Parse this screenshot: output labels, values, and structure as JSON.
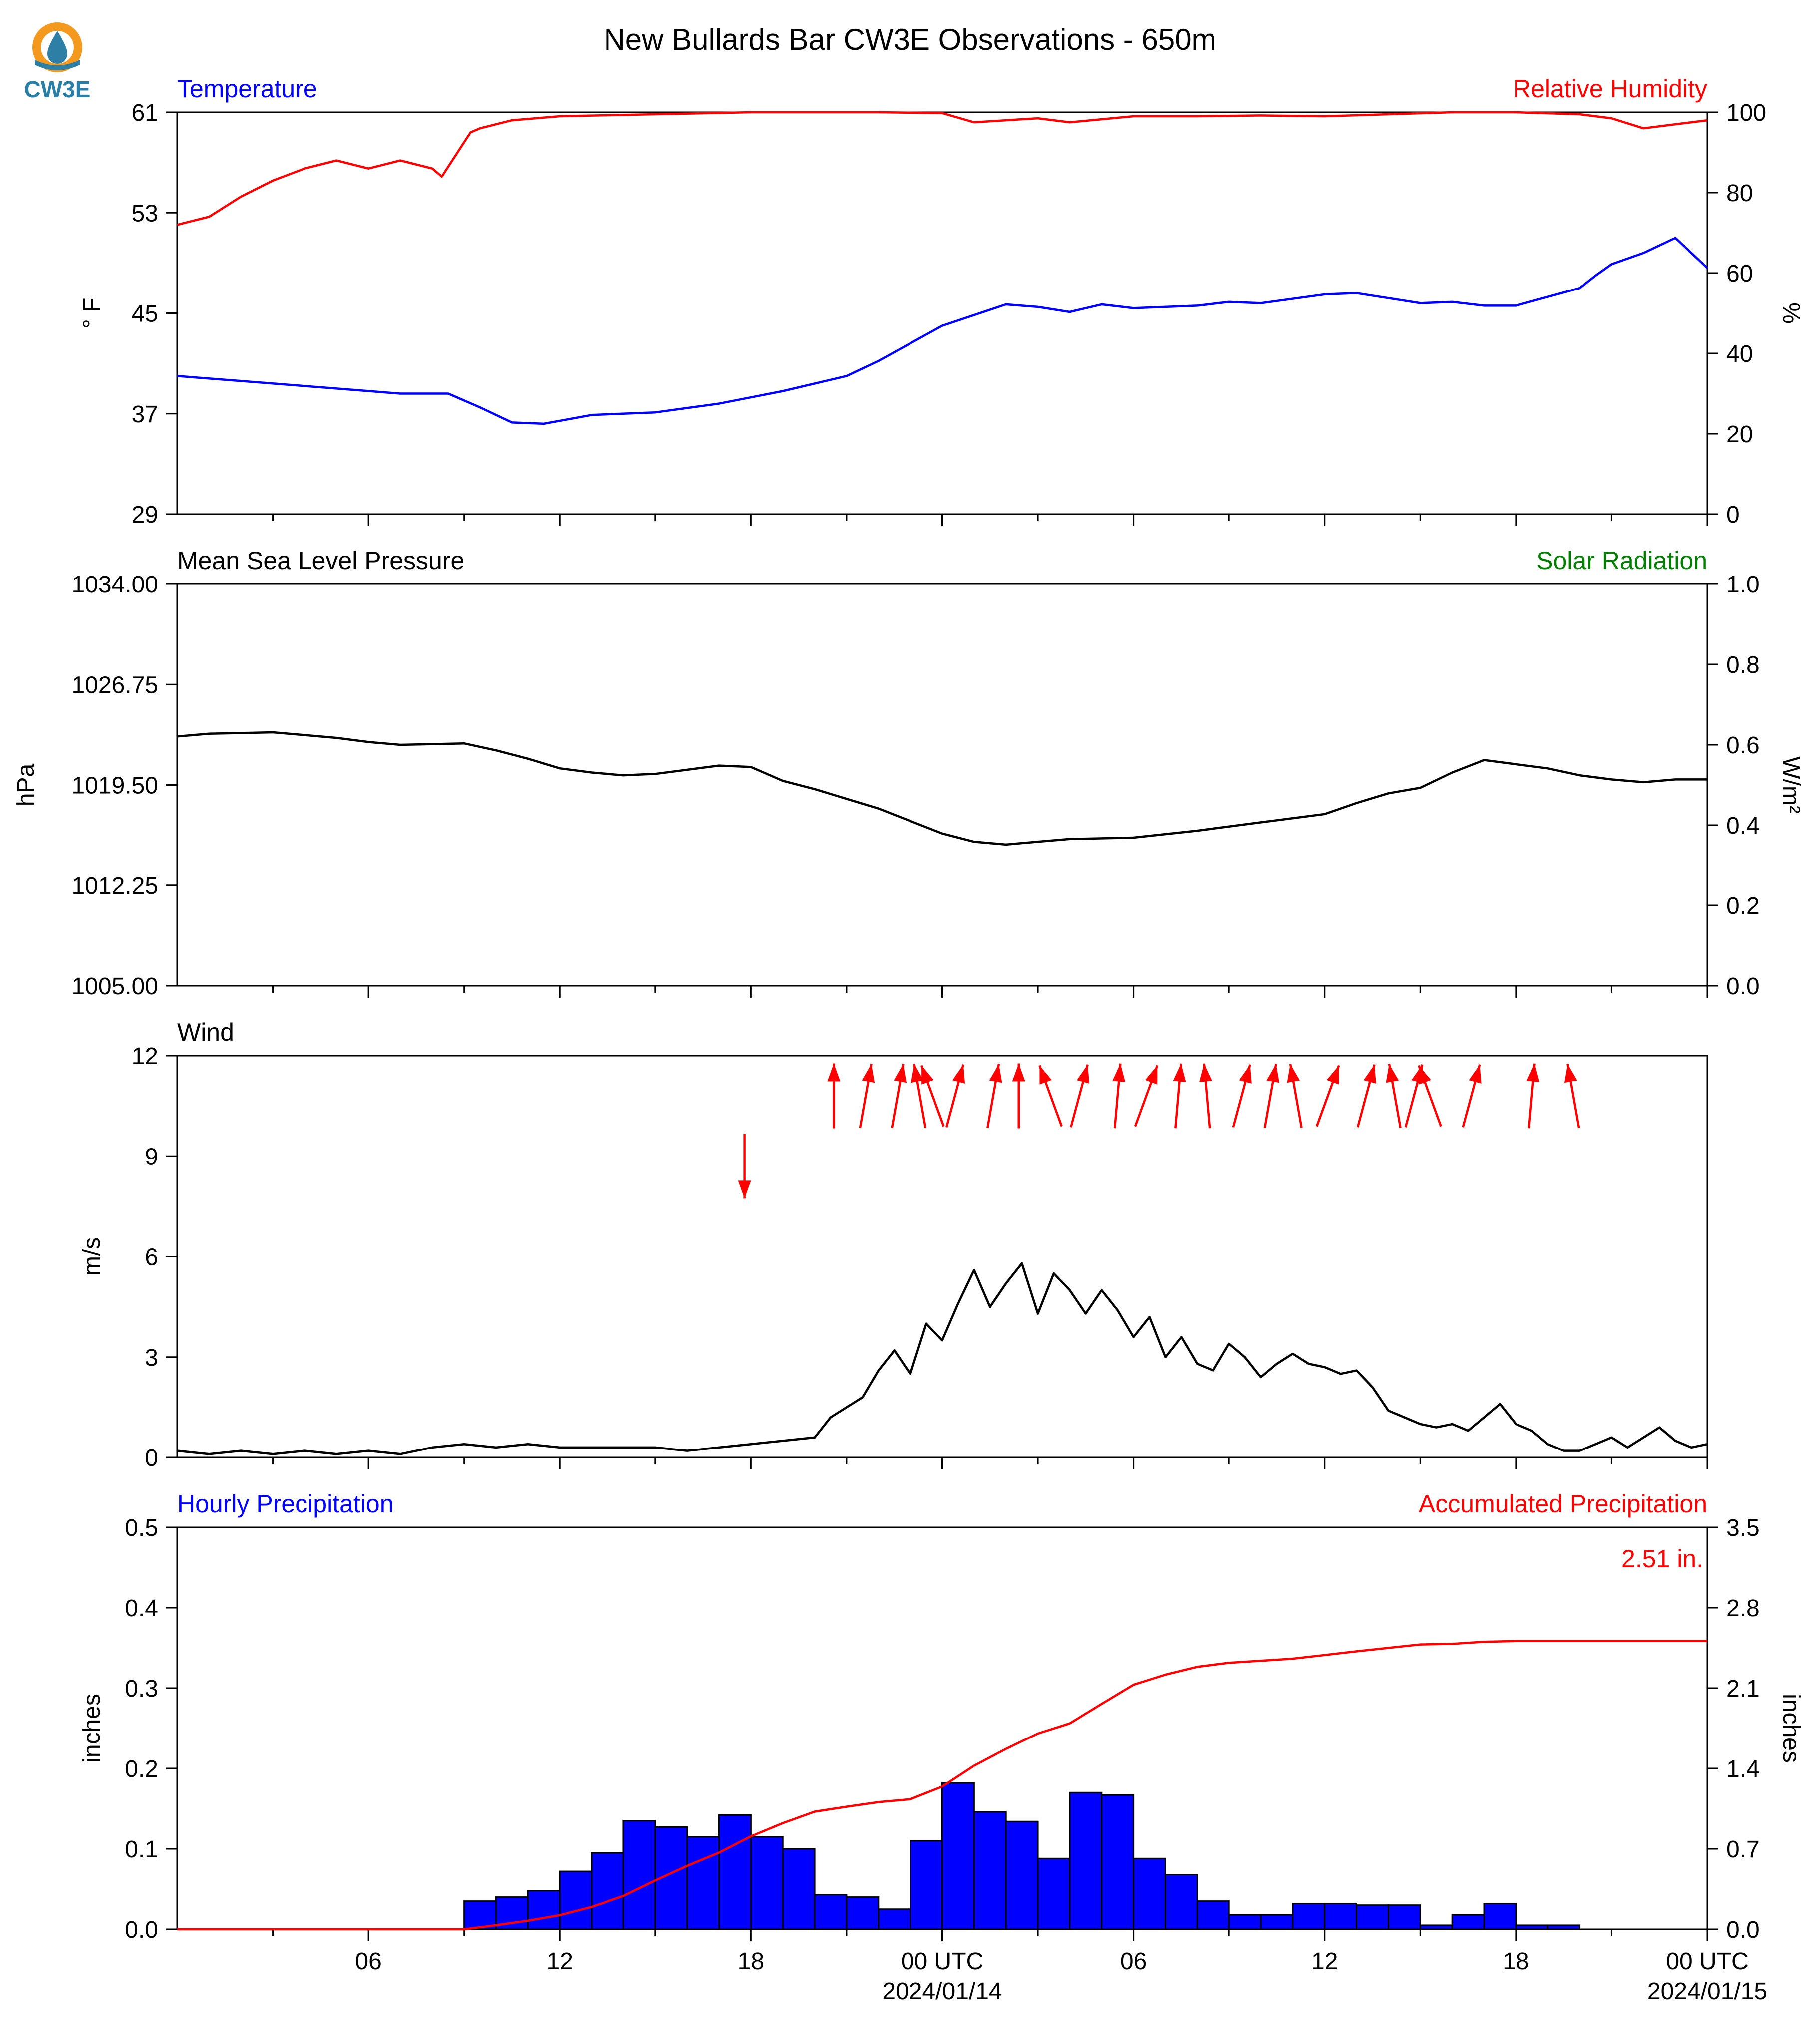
{
  "title": "New Bullards Bar CW3E Observations - 650m",
  "logo": {
    "text": "CW3E",
    "icon": "water-drop-logo-icon",
    "colors": {
      "orange": "#F39A1E",
      "blue": "#2E7FA6",
      "text": "#2A7FA8"
    }
  },
  "colors": {
    "blue": "#0000FF",
    "red": "#FF0000",
    "green": "#008000",
    "black": "#000000"
  },
  "x_axis": {
    "tick_labels": [
      "06",
      "12",
      "18",
      "00 UTC",
      "06",
      "12",
      "18",
      "00 UTC"
    ],
    "date_labels": [
      "2024/01/14",
      "2024/01/15"
    ]
  },
  "chart_data": [
    {
      "type": "line",
      "left_label": "Temperature",
      "right_label": "Relative Humidity",
      "ylabel_left": "° F",
      "ylabel_right": "%",
      "ylim_left": [
        29,
        61
      ],
      "yticks_left": [
        "29",
        "37",
        "45",
        "53",
        "61"
      ],
      "ylim_right": [
        0,
        100
      ],
      "yticks_right": [
        "0",
        "20",
        "40",
        "60",
        "80",
        "100"
      ],
      "series": [
        {
          "name": "Temperature",
          "axis": "left",
          "color": "#0000FF",
          "x": [
            0,
            2,
            5,
            7,
            8.5,
            9.5,
            10.5,
            11.5,
            13,
            15,
            17,
            19,
            21,
            22,
            24,
            26,
            27,
            28,
            29,
            30,
            32,
            33,
            34,
            36,
            37,
            38,
            39,
            40,
            41,
            42,
            43,
            44,
            44.5,
            45,
            46,
            47,
            48
          ],
          "y": [
            40,
            39.6,
            39,
            38.6,
            38.6,
            37.5,
            36.3,
            36.2,
            36.9,
            37.1,
            37.8,
            38.8,
            40.0,
            41.2,
            44,
            45.7,
            45.5,
            45.1,
            45.7,
            45.4,
            45.6,
            45.9,
            45.8,
            46.5,
            46.6,
            46.2,
            45.8,
            45.9,
            45.6,
            45.6,
            46.3,
            47.0,
            48.0,
            48.9,
            49.8,
            51,
            48.6
          ]
        },
        {
          "name": "Relative Humidity",
          "axis": "right",
          "color": "#FF0000",
          "x": [
            0,
            1,
            2,
            3,
            4,
            5,
            6,
            7,
            8,
            8.3,
            9.2,
            9.5,
            10.5,
            12,
            15,
            18,
            22,
            24,
            25,
            27,
            28,
            30,
            32,
            34,
            36,
            38,
            40,
            42,
            44,
            45,
            46,
            47,
            48
          ],
          "y": [
            72,
            74,
            79,
            83,
            86,
            88,
            86,
            88,
            86,
            84,
            95,
            96,
            98,
            99,
            99.5,
            100,
            100,
            99.8,
            97.5,
            98.5,
            97.5,
            99,
            99,
            99.2,
            99,
            99.5,
            100,
            100,
            99.5,
            98.5,
            96,
            97,
            98
          ]
        }
      ]
    },
    {
      "type": "line",
      "left_label": "Mean Sea Level Pressure",
      "right_label": "Solar Radiation",
      "ylabel_left": "hPa",
      "ylabel_right": "W/m²",
      "ylim_left": [
        1005.0,
        1034.0
      ],
      "yticks_left": [
        "1005.00",
        "1012.25",
        "1019.50",
        "1026.75",
        "1034.00"
      ],
      "ylim_right": [
        0.0,
        1.0
      ],
      "yticks_right": [
        "0.0",
        "0.2",
        "0.4",
        "0.6",
        "0.8",
        "1.0"
      ],
      "series": [
        {
          "name": "Mean Sea Level Pressure",
          "axis": "left",
          "color": "#000000",
          "x": [
            0,
            1,
            3,
            5,
            6,
            7,
            9,
            10,
            11,
            12,
            13,
            14,
            15,
            16,
            17,
            18,
            19,
            20,
            21,
            22,
            23,
            24,
            25,
            26,
            27,
            28,
            30,
            32,
            34,
            35,
            36,
            37,
            38,
            39,
            40,
            41,
            42,
            43,
            44,
            45,
            46,
            47,
            48
          ],
          "y": [
            1023.0,
            1023.2,
            1023.3,
            1022.9,
            1022.6,
            1022.4,
            1022.5,
            1022.0,
            1021.4,
            1020.7,
            1020.4,
            1020.2,
            1020.3,
            1020.6,
            1020.9,
            1020.8,
            1019.8,
            1019.2,
            1018.5,
            1017.8,
            1016.9,
            1016.0,
            1015.4,
            1015.2,
            1015.4,
            1015.6,
            1015.7,
            1016.2,
            1016.8,
            1017.1,
            1017.4,
            1018.2,
            1018.9,
            1019.3,
            1020.4,
            1021.3,
            1021.0,
            1020.7,
            1020.2,
            1019.9,
            1019.7,
            1019.9,
            1019.9
          ]
        }
      ]
    },
    {
      "type": "line",
      "left_label": "Wind",
      "ylabel_left": "m/s",
      "ylim_left": [
        0,
        12
      ],
      "yticks_left": [
        "0",
        "3",
        "6",
        "9",
        "12"
      ],
      "series": [
        {
          "name": "Wind",
          "axis": "left",
          "color": "#000000",
          "x": [
            0,
            1,
            2,
            3,
            4,
            5,
            6,
            7,
            8,
            9,
            10,
            11,
            12,
            13,
            14,
            15,
            16,
            17,
            18,
            19,
            20,
            20.5,
            21,
            21.5,
            22,
            22.5,
            23,
            23.5,
            24,
            24.5,
            25,
            25.5,
            26,
            26.5,
            27,
            27.5,
            28,
            28.5,
            29,
            29.5,
            30,
            30.5,
            31,
            31.5,
            32,
            32.5,
            33,
            33.5,
            34,
            34.5,
            35,
            35.5,
            36,
            36.5,
            37,
            37.5,
            38,
            38.5,
            39,
            39.5,
            40,
            40.5,
            41,
            41.5,
            42,
            42.5,
            43,
            43.5,
            44,
            44.5,
            45,
            45.5,
            46,
            46.5,
            47,
            47.5,
            48
          ],
          "y": [
            0.2,
            0.1,
            0.2,
            0.1,
            0.2,
            0.1,
            0.2,
            0.1,
            0.3,
            0.4,
            0.3,
            0.4,
            0.3,
            0.3,
            0.3,
            0.3,
            0.2,
            0.3,
            0.4,
            0.5,
            0.6,
            1.2,
            1.5,
            1.8,
            2.6,
            3.2,
            2.5,
            4.0,
            3.5,
            4.6,
            5.6,
            4.5,
            5.2,
            5.8,
            4.3,
            5.5,
            5.0,
            4.3,
            5.0,
            4.4,
            3.6,
            4.2,
            3.0,
            3.6,
            2.8,
            2.6,
            3.4,
            3.0,
            2.4,
            2.8,
            3.1,
            2.8,
            2.7,
            2.5,
            2.6,
            2.1,
            1.4,
            1.2,
            1.0,
            0.9,
            1.0,
            0.8,
            1.2,
            1.6,
            1.0,
            0.8,
            0.4,
            0.2,
            0.2,
            0.4,
            0.6,
            0.3,
            0.6,
            0.9,
            0.5,
            0.3,
            0.4
          ]
        },
        {
          "name": "Wind Direction Arrows",
          "type": "vector",
          "color": "#FF0000",
          "x": [
            17.8,
            20.6,
            21.6,
            22.6,
            23.3,
            23.7,
            24.4,
            25.6,
            26.4,
            27.4,
            28.3,
            29.5,
            30.4,
            31.4,
            32.3,
            33.4,
            34.3,
            35.1,
            36.1,
            37.3,
            38.2,
            38.8,
            39.3,
            40.6,
            42.5,
            43.8
          ],
          "angle_deg_from_north_toward": [
            180,
            0,
            10,
            10,
            350,
            340,
            15,
            10,
            0,
            340,
            15,
            5,
            20,
            5,
            355,
            15,
            10,
            350,
            20,
            15,
            350,
            15,
            340,
            15,
            5,
            350
          ]
        }
      ]
    },
    {
      "type": "bar",
      "left_label": "Hourly Precipitation",
      "right_label": "Accumulated Precipitation",
      "annotation": "2.51 in.",
      "ylabel_left": "inches",
      "ylabel_right": "inches",
      "ylim_left": [
        0.0,
        0.5
      ],
      "yticks_left": [
        "0.0",
        "0.1",
        "0.2",
        "0.3",
        "0.4",
        "0.5"
      ],
      "ylim_right": [
        0.0,
        3.5
      ],
      "yticks_right": [
        "0.0",
        "0.7",
        "1.4",
        "2.1",
        "2.8",
        "3.5"
      ],
      "series": [
        {
          "name": "Hourly Precipitation",
          "axis": "left",
          "color": "#0000FF",
          "x": [
            9,
            10,
            11,
            12,
            13,
            14,
            15,
            16,
            17,
            18,
            19,
            20,
            21,
            22,
            23,
            24,
            25,
            26,
            27,
            28,
            29,
            30,
            31,
            32,
            33,
            34,
            35,
            36,
            37,
            38,
            39,
            40,
            41,
            42,
            43
          ],
          "values": [
            0.035,
            0.04,
            0.048,
            0.072,
            0.095,
            0.135,
            0.127,
            0.115,
            0.142,
            0.115,
            0.1,
            0.043,
            0.04,
            0.025,
            0.11,
            0.182,
            0.146,
            0.134,
            0.088,
            0.17,
            0.167,
            0.088,
            0.068,
            0.035,
            0.018,
            0.018,
            0.032,
            0.032,
            0.03,
            0.03,
            0.005,
            0.018,
            0.032,
            0.005,
            0.005
          ]
        },
        {
          "name": "Accumulated Precipitation",
          "axis": "right",
          "color": "#FF0000",
          "x": [
            0,
            9,
            10,
            11,
            12,
            13,
            14,
            15,
            16,
            17,
            18,
            19,
            20,
            21,
            22,
            23,
            24,
            25,
            26,
            27,
            28,
            29,
            30,
            31,
            32,
            33,
            34,
            35,
            36,
            37,
            38,
            39,
            40,
            41,
            42,
            43,
            48
          ],
          "y": [
            0,
            0,
            0.035,
            0.075,
            0.123,
            0.195,
            0.29,
            0.425,
            0.552,
            0.667,
            0.809,
            0.924,
            1.024,
            1.067,
            1.107,
            1.132,
            1.242,
            1.424,
            1.57,
            1.704,
            1.792,
            1.962,
            2.129,
            2.217,
            2.285,
            2.32,
            2.338,
            2.356,
            2.388,
            2.42,
            2.45,
            2.48,
            2.485,
            2.503,
            2.51,
            2.51,
            2.51
          ]
        }
      ]
    }
  ]
}
